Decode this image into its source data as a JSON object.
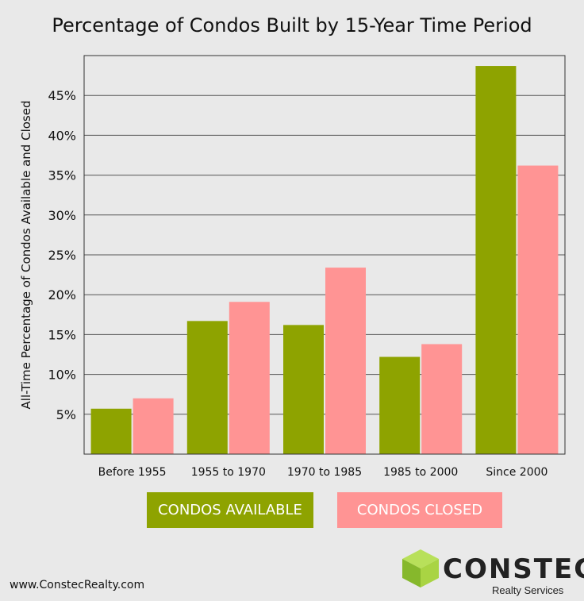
{
  "chart_data": {
    "type": "bar",
    "title": "Percentage of Condos Built by 15-Year Time Period",
    "ylabel": "All-Time Percentage of Condos Available and Closed",
    "xlabel": "",
    "categories": [
      "Before 1955",
      "1955 to 1970",
      "1970 to 1985",
      "1985 to 2000",
      "Since 2000"
    ],
    "series": [
      {
        "name": "CONDOS AVAILABLE",
        "color": "#8ea300",
        "values": [
          5.7,
          16.7,
          16.2,
          12.2,
          48.7
        ]
      },
      {
        "name": "CONDOS CLOSED",
        "color": "#ff9494",
        "values": [
          7.0,
          19.1,
          23.4,
          13.8,
          36.2
        ]
      }
    ],
    "yticks": [
      5,
      10,
      15,
      20,
      25,
      30,
      35,
      40,
      45
    ],
    "ytick_labels": [
      "5%",
      "10%",
      "15%",
      "20%",
      "25%",
      "30%",
      "35%",
      "40%",
      "45%"
    ],
    "ylim": [
      0,
      50
    ],
    "grid": true,
    "legend_position": "bottom"
  },
  "footer": {
    "website": "www.ConstecRealty.com",
    "logo_name": "CONSTEC",
    "logo_sub": "Realty Services"
  }
}
